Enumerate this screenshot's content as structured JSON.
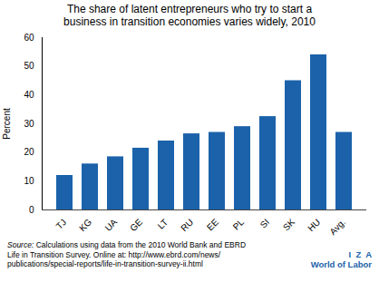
{
  "chart_data": {
    "type": "bar",
    "title": "The share of latent entrepreneurs who try to start a",
    "subtitle": "business in transition economies varies widely, 2010",
    "ylabel": "Percent",
    "categories": [
      "TJ",
      "KG",
      "UA",
      "GE",
      "LT",
      "RU",
      "EE",
      "PL",
      "SI",
      "SK",
      "HU",
      "Avg."
    ],
    "values": [
      12,
      16,
      18.5,
      21.5,
      24,
      26.5,
      27,
      29,
      32.5,
      45,
      54,
      27
    ],
    "color": "#1b62aa",
    "ylim": [
      0,
      60
    ],
    "yticks": [
      0,
      10,
      20,
      30,
      40,
      50,
      60
    ],
    "grid": false,
    "caption": [
      "Source: Calculations using data from the 2010 World Bank and EBRD",
      "Life in Transition Survey. Online at: http://www.ebrd.com/news/",
      "publications/special-reports/life-in-transition-survey-ii.html"
    ],
    "annotations": [
      "I  Z  A",
      "World of Labor"
    ]
  }
}
